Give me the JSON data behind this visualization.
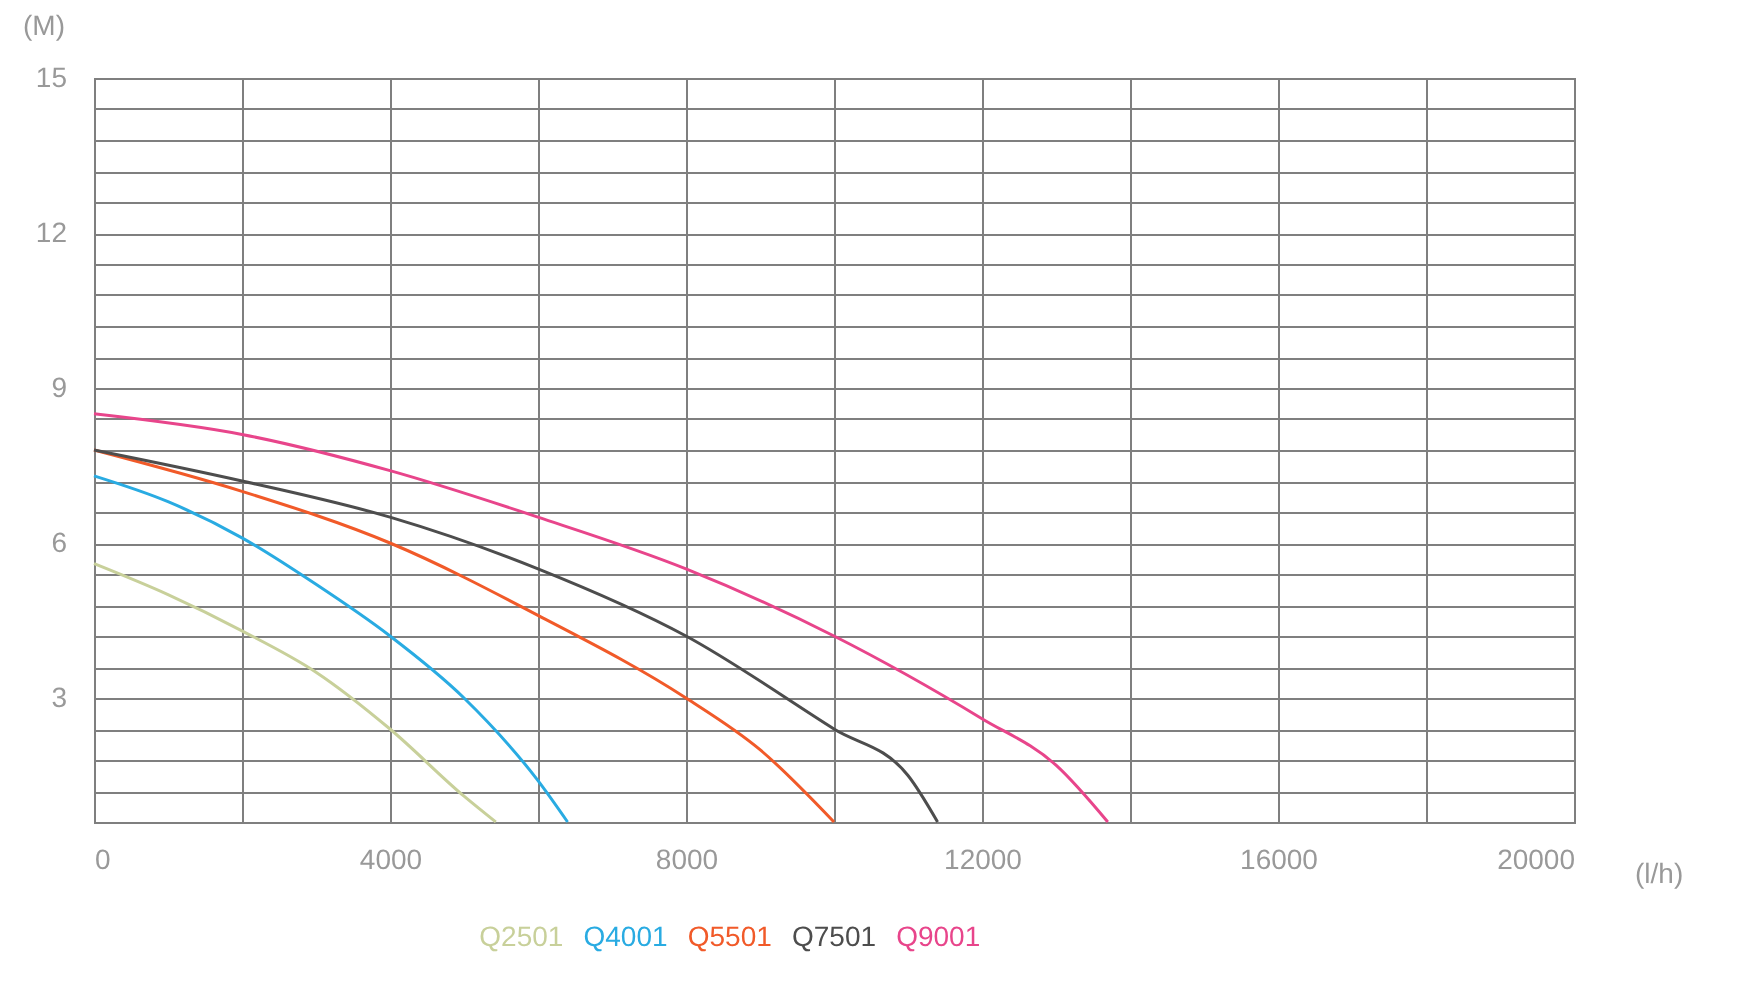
{
  "chart_data": {
    "type": "line",
    "xlabel": "(l/h)",
    "ylabel": "(M)",
    "xlim": [
      0,
      20000
    ],
    "ylim": [
      0.6,
      15
    ],
    "xticks": [
      0,
      {
        "value": 2000,
        "label": null
      },
      4000,
      {
        "value": 6000,
        "label": null
      },
      8000,
      {
        "value": 10000,
        "label": null
      },
      12000,
      {
        "value": 14000,
        "label": null
      },
      16000,
      {
        "value": 18000,
        "label": null
      },
      20000
    ],
    "yticks": [
      {
        "value": 0.6,
        "label": null
      },
      {
        "value": 1.2,
        "label": null
      },
      {
        "value": 1.8,
        "label": null
      },
      {
        "value": 2.4,
        "label": null
      },
      3,
      {
        "value": 3.6,
        "label": null
      },
      {
        "value": 4.2,
        "label": null
      },
      {
        "value": 4.8,
        "label": null
      },
      {
        "value": 5.4,
        "label": null
      },
      6,
      {
        "value": 6.6,
        "label": null
      },
      {
        "value": 7.2,
        "label": null
      },
      {
        "value": 7.8,
        "label": null
      },
      {
        "value": 8.4,
        "label": null
      },
      9,
      {
        "value": 9.6,
        "label": null
      },
      {
        "value": 10.2,
        "label": null
      },
      {
        "value": 10.8,
        "label": null
      },
      {
        "value": 11.4,
        "label": null
      },
      12,
      {
        "value": 12.6,
        "label": null
      },
      {
        "value": 13.2,
        "label": null
      },
      {
        "value": 13.8,
        "label": null
      },
      {
        "value": 14.4,
        "label": null
      },
      15
    ],
    "grid": true,
    "legend": "bottom",
    "marker": "none",
    "line_style": "solid",
    "series": [
      {
        "name": "Q2501",
        "color": "#c8d09a",
        "x": [
          0,
          1000,
          2000,
          3000,
          4000,
          5000,
          5430
        ],
        "values": [
          5.6,
          5.0,
          4.3,
          3.5,
          2.4,
          1.1,
          0.6
        ]
      },
      {
        "name": "Q4001",
        "color": "#29abe2",
        "x": [
          0,
          1000,
          2000,
          3000,
          4000,
          5000,
          6000,
          6400
        ],
        "values": [
          7.3,
          6.8,
          6.1,
          5.2,
          4.2,
          3.0,
          1.4,
          0.6
        ]
      },
      {
        "name": "Q5501",
        "color": "#f15a29",
        "x": [
          0,
          2000,
          4000,
          6000,
          8000,
          9000,
          10000
        ],
        "values": [
          7.8,
          7.0,
          6.0,
          4.6,
          3.0,
          2.0,
          0.6
        ]
      },
      {
        "name": "Q7501",
        "color": "#4d4d4d",
        "x": [
          0,
          2000,
          4000,
          6000,
          8000,
          10000,
          11000,
          11400
        ],
        "values": [
          7.8,
          7.2,
          6.5,
          5.5,
          4.2,
          2.4,
          1.5,
          0.6
        ]
      },
      {
        "name": "Q9001",
        "color": "#e8458b",
        "x": [
          0,
          2000,
          4000,
          6000,
          8000,
          10000,
          12000,
          13000,
          13700
        ],
        "values": [
          8.5,
          8.1,
          7.4,
          6.5,
          5.5,
          4.2,
          2.6,
          1.7,
          0.6
        ]
      }
    ]
  }
}
